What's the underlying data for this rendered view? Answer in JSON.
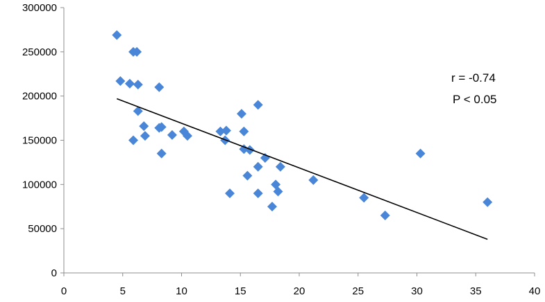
{
  "chart_data": {
    "type": "scatter",
    "title": "",
    "xlabel": "",
    "ylabel": "",
    "xlim": [
      0,
      40
    ],
    "ylim": [
      0,
      300000
    ],
    "x_ticks": [
      0,
      5,
      10,
      15,
      20,
      25,
      30,
      35,
      40
    ],
    "y_ticks": [
      0,
      50000,
      100000,
      150000,
      200000,
      250000,
      300000
    ],
    "x_tick_labels": [
      "0",
      "5",
      "10",
      "15",
      "20",
      "25",
      "30",
      "35",
      "40"
    ],
    "y_tick_labels": [
      "0",
      "50000",
      "100000",
      "150000",
      "200000",
      "250000",
      "300000"
    ],
    "grid": false,
    "legend": "none",
    "marker": "diamond",
    "marker_color": "#4a86d8",
    "points": [
      {
        "x": 4.5,
        "y": 269000
      },
      {
        "x": 4.8,
        "y": 217000
      },
      {
        "x": 5.6,
        "y": 214000
      },
      {
        "x": 5.9,
        "y": 250000
      },
      {
        "x": 6.2,
        "y": 250000
      },
      {
        "x": 6.3,
        "y": 213000
      },
      {
        "x": 6.3,
        "y": 183000
      },
      {
        "x": 6.8,
        "y": 166000
      },
      {
        "x": 6.9,
        "y": 155000
      },
      {
        "x": 5.9,
        "y": 150000
      },
      {
        "x": 8.1,
        "y": 210000
      },
      {
        "x": 8.1,
        "y": 164000
      },
      {
        "x": 8.3,
        "y": 165000
      },
      {
        "x": 8.3,
        "y": 135000
      },
      {
        "x": 9.2,
        "y": 156000
      },
      {
        "x": 10.2,
        "y": 160000
      },
      {
        "x": 10.5,
        "y": 155000
      },
      {
        "x": 13.3,
        "y": 160000
      },
      {
        "x": 13.8,
        "y": 161000
      },
      {
        "x": 13.7,
        "y": 150000
      },
      {
        "x": 14.1,
        "y": 90000
      },
      {
        "x": 15.1,
        "y": 180000
      },
      {
        "x": 15.3,
        "y": 160000
      },
      {
        "x": 15.3,
        "y": 140000
      },
      {
        "x": 15.8,
        "y": 139000
      },
      {
        "x": 15.6,
        "y": 110000
      },
      {
        "x": 16.5,
        "y": 190000
      },
      {
        "x": 16.5,
        "y": 120000
      },
      {
        "x": 16.5,
        "y": 90000
      },
      {
        "x": 17.1,
        "y": 130000
      },
      {
        "x": 17.7,
        "y": 75000
      },
      {
        "x": 18.0,
        "y": 100000
      },
      {
        "x": 18.2,
        "y": 92000
      },
      {
        "x": 18.4,
        "y": 120000
      },
      {
        "x": 21.2,
        "y": 105000
      },
      {
        "x": 25.5,
        "y": 85000
      },
      {
        "x": 27.3,
        "y": 65000
      },
      {
        "x": 30.3,
        "y": 135000
      },
      {
        "x": 36.0,
        "y": 80000
      }
    ],
    "trendline": {
      "x": [
        4.5,
        36.0
      ],
      "y": [
        197000,
        38000
      ]
    },
    "annotations": [
      "r =  -0.74",
      "P  < 0.05"
    ]
  }
}
